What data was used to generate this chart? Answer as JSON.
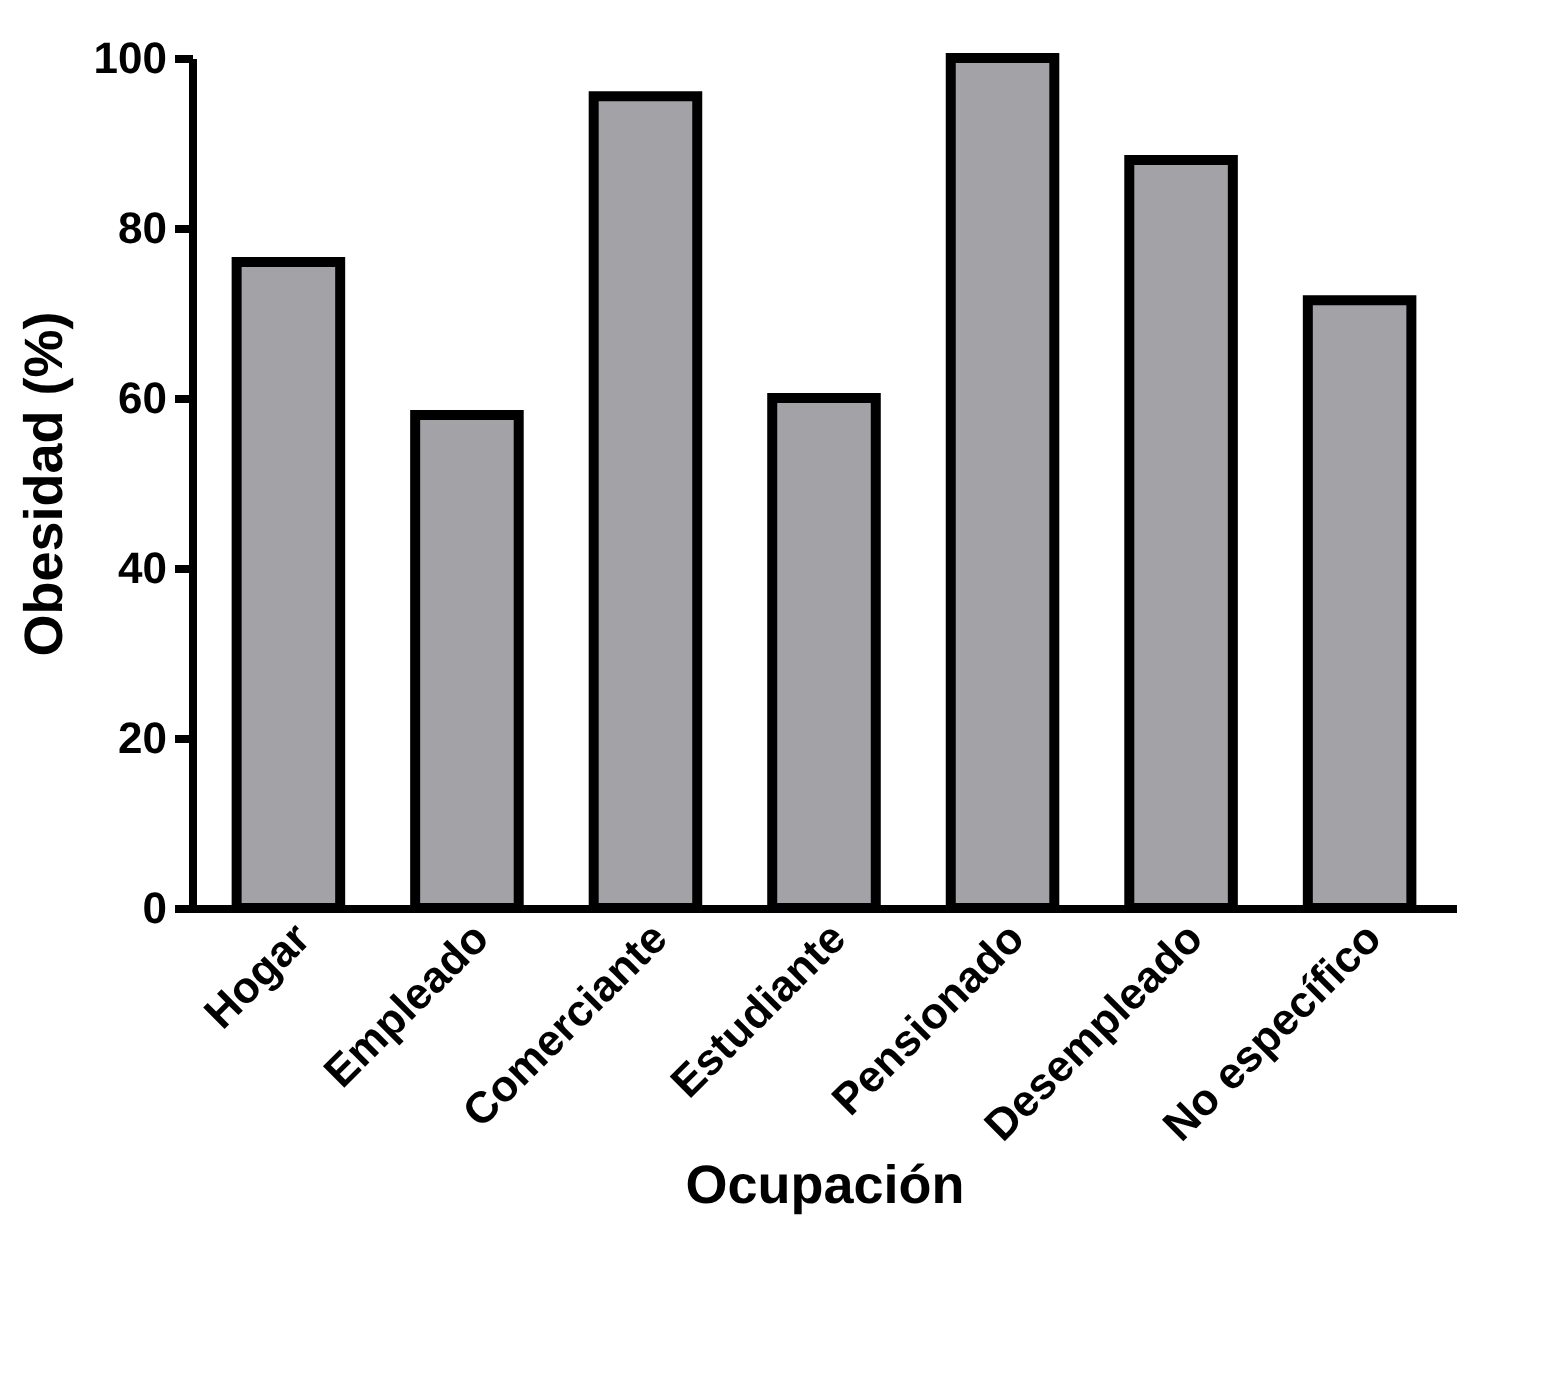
{
  "chart_data": {
    "type": "bar",
    "xlabel": "Ocupación",
    "ylabel": "Obesidad (%)",
    "categories": [
      "Hogar",
      "Empleado",
      "Comerciante",
      "Estudiante",
      "Pensionado",
      "Desempleado",
      "No específico"
    ],
    "values": [
      76,
      58,
      95.5,
      60,
      100,
      88,
      71.5
    ],
    "color": "#a3a3a7",
    "ylim": [
      0,
      100
    ],
    "yticks": [
      0,
      20,
      40,
      60,
      80,
      100
    ],
    "grid": false
  }
}
